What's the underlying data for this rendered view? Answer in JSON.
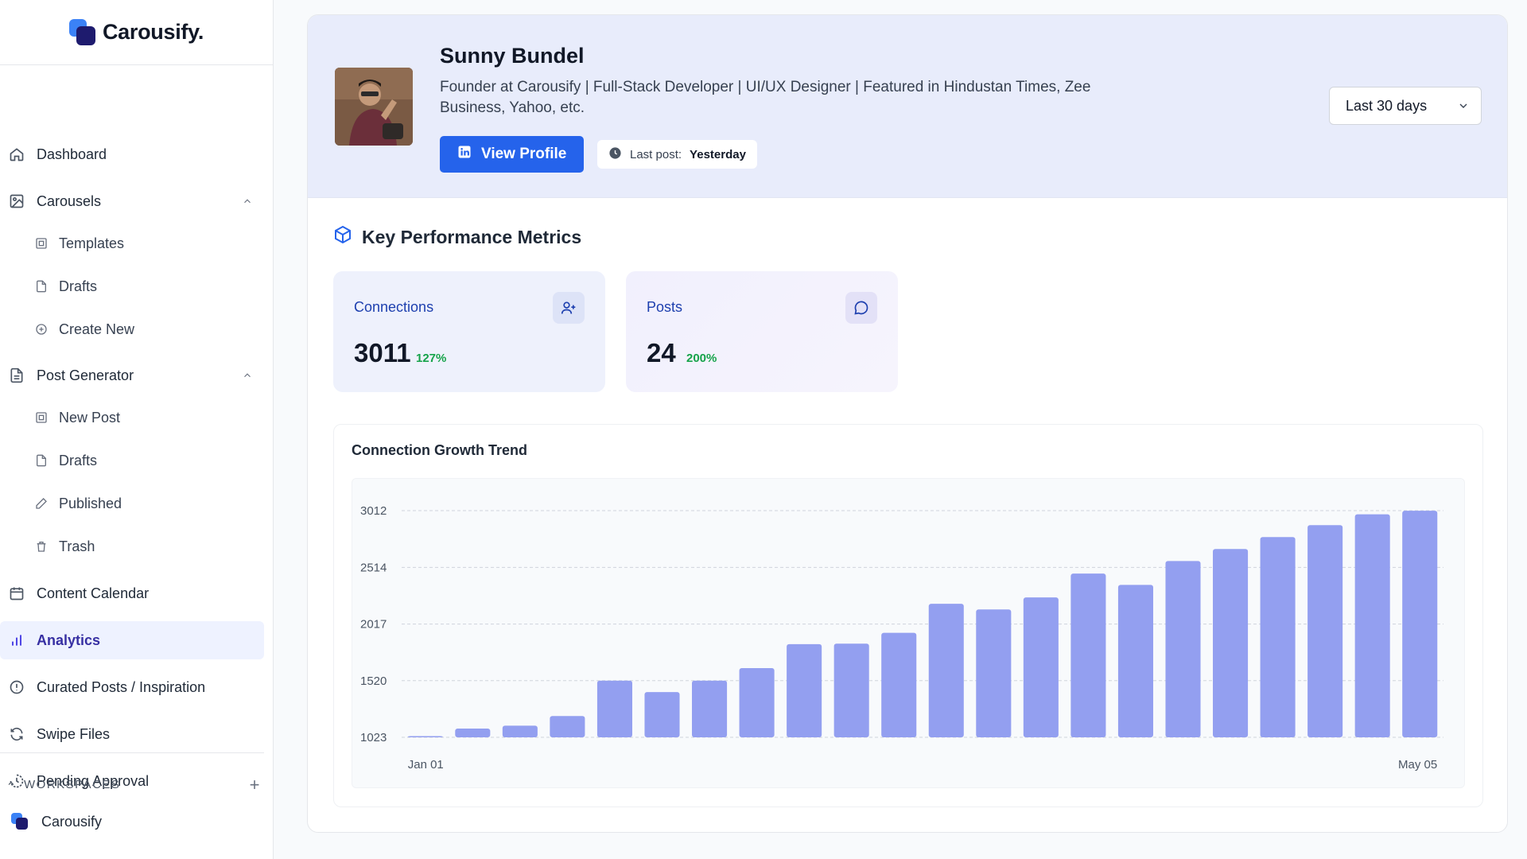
{
  "app": {
    "name": "Carousify."
  },
  "sidebar": {
    "dashboard": "Dashboard",
    "carousels": "Carousels",
    "carousels_items": [
      "Templates",
      "Drafts",
      "Create New"
    ],
    "post_generator": "Post Generator",
    "post_generator_items": [
      "New Post",
      "Drafts",
      "Published",
      "Trash"
    ],
    "content_calendar": "Content Calendar",
    "analytics": "Analytics",
    "curated": "Curated Posts / Inspiration",
    "swipe_files": "Swipe Files",
    "pending_approval": "Pending Approval",
    "workspaces_label": "WORKSPACES",
    "workspace_name": "Carousify"
  },
  "profile": {
    "name": "Sunny Bundel",
    "bio": "Founder at Carousify | Full-Stack Developer | UI/UX Designer | Featured in Hindustan Times, Zee Business, Yahoo, etc.",
    "view_profile": "View Profile",
    "last_post_label": "Last post:",
    "last_post_value": "Yesterday"
  },
  "range": {
    "selected": "Last 30 days"
  },
  "metrics": {
    "title": "Key Performance Metrics",
    "connections": {
      "label": "Connections",
      "value": "3011",
      "change": "127%"
    },
    "posts": {
      "label": "Posts",
      "value": "24",
      "change": "200%"
    }
  },
  "colors": {
    "accent": "#2563eb",
    "bar": "#939ff0",
    "positive": "#16a34a",
    "active_bg": "#eef2ff"
  },
  "chart_data": {
    "type": "bar",
    "title": "Connection Growth Trend",
    "xlabel": "",
    "ylabel": "",
    "x_tick_labels": [
      "Jan 01",
      "May 05"
    ],
    "y_ticks": [
      1023,
      1520,
      2017,
      2514,
      3012
    ],
    "ylim": [
      1023,
      3012
    ],
    "grid": true,
    "values": [
      1030,
      1100,
      1125,
      1210,
      1520,
      1420,
      1520,
      1630,
      1840,
      1845,
      1940,
      2195,
      2145,
      2250,
      2460,
      2360,
      2570,
      2675,
      2780,
      2885,
      2980,
      3011
    ]
  }
}
